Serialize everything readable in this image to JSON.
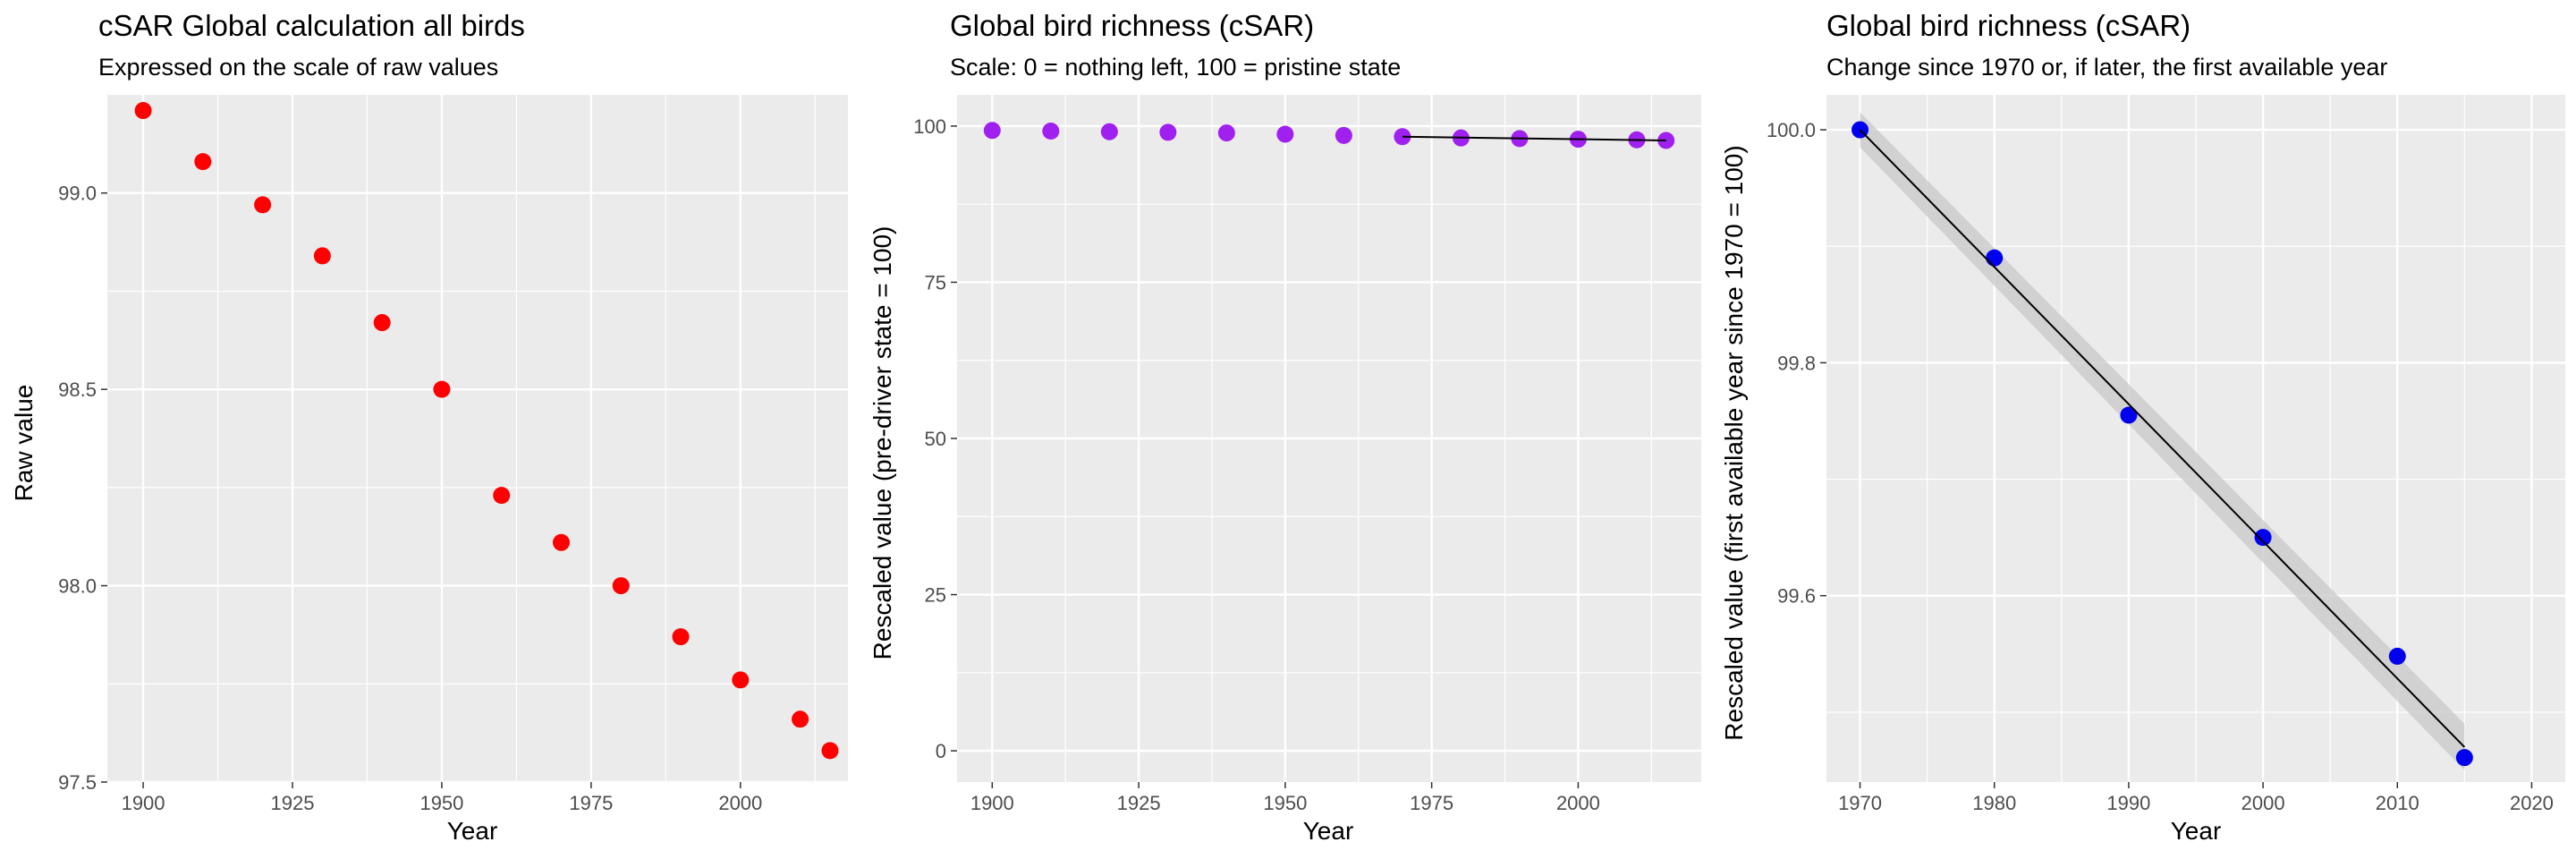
{
  "chart_data": [
    {
      "type": "scatter",
      "title": "cSAR Global calculation all birds",
      "subtitle": "Expressed on the scale of raw values",
      "xlabel": "Year",
      "ylabel": "Raw value",
      "xlim": [
        1894,
        2018
      ],
      "ylim": [
        97.5,
        99.25
      ],
      "xticks": [
        1900,
        1925,
        1950,
        1975,
        2000
      ],
      "xtick_labels": [
        "1900",
        "1925",
        "1950",
        "1975",
        "2000"
      ],
      "yticks": [
        97.5,
        98.0,
        98.5,
        99.0
      ],
      "ytick_labels": [
        "97.5",
        "98.0",
        "98.5",
        "99.0"
      ],
      "point_color": "#ff0000",
      "x": [
        1900,
        1910,
        1920,
        1930,
        1940,
        1950,
        1960,
        1970,
        1980,
        1990,
        2000,
        2010,
        2015
      ],
      "y": [
        99.21,
        99.08,
        98.97,
        98.84,
        98.67,
        98.5,
        98.23,
        98.11,
        98.0,
        97.87,
        97.76,
        97.66,
        97.58
      ],
      "grid": true
    },
    {
      "type": "scatter",
      "title": "Global bird richness (cSAR)",
      "subtitle": "Scale: 0 = nothing left, 100 = pristine state",
      "xlabel": "Year",
      "ylabel": "Rescaled value (pre-driver state = 100)",
      "xlim": [
        1894,
        2021
      ],
      "ylim": [
        -5,
        105
      ],
      "xticks": [
        1900,
        1925,
        1950,
        1975,
        2000
      ],
      "xtick_labels": [
        "1900",
        "1925",
        "1950",
        "1975",
        "2000"
      ],
      "yticks": [
        0,
        25,
        50,
        75,
        100
      ],
      "ytick_labels": [
        "0",
        "25",
        "50",
        "75",
        "100"
      ],
      "point_color": "#a020f0",
      "x": [
        1900,
        1910,
        1920,
        1930,
        1940,
        1950,
        1960,
        1970,
        1980,
        1990,
        2000,
        2010,
        2015
      ],
      "y": [
        99.3,
        99.2,
        99.1,
        99.0,
        98.9,
        98.7,
        98.5,
        98.3,
        98.1,
        98.0,
        97.9,
        97.8,
        97.7
      ],
      "trend_line": {
        "x": [
          1970,
          2015
        ],
        "y": [
          98.3,
          97.7
        ]
      },
      "grid": true
    },
    {
      "type": "scatter",
      "title": "Global bird richness (cSAR)",
      "subtitle": "Change since 1970 or, if later, the first available year",
      "xlabel": "Year",
      "ylabel": "Rescaled value (first available year since 1970 = 100)",
      "xlim": [
        1967.5,
        2022.5
      ],
      "ylim": [
        99.44,
        100.03
      ],
      "xticks": [
        1970,
        1980,
        1990,
        2000,
        2010,
        2020
      ],
      "xtick_labels": [
        "1970",
        "1980",
        "1990",
        "2000",
        "2010",
        "2020"
      ],
      "yticks": [
        99.6,
        99.8,
        100.0
      ],
      "ytick_labels": [
        "99.6",
        "99.8",
        "100.0"
      ],
      "point_color": "#0000ee",
      "x": [
        1970,
        1980,
        1990,
        2000,
        2010,
        2015
      ],
      "y": [
        100.0,
        99.89,
        99.755,
        99.65,
        99.548,
        99.461
      ],
      "trend_line": {
        "x": [
          1970,
          2015
        ],
        "y": [
          100.0,
          99.47
        ]
      },
      "confidence_band": {
        "x": [
          1970,
          2015
        ],
        "lower": [
          99.985,
          99.45
        ],
        "upper": [
          100.015,
          99.49
        ]
      },
      "grid": true
    }
  ]
}
